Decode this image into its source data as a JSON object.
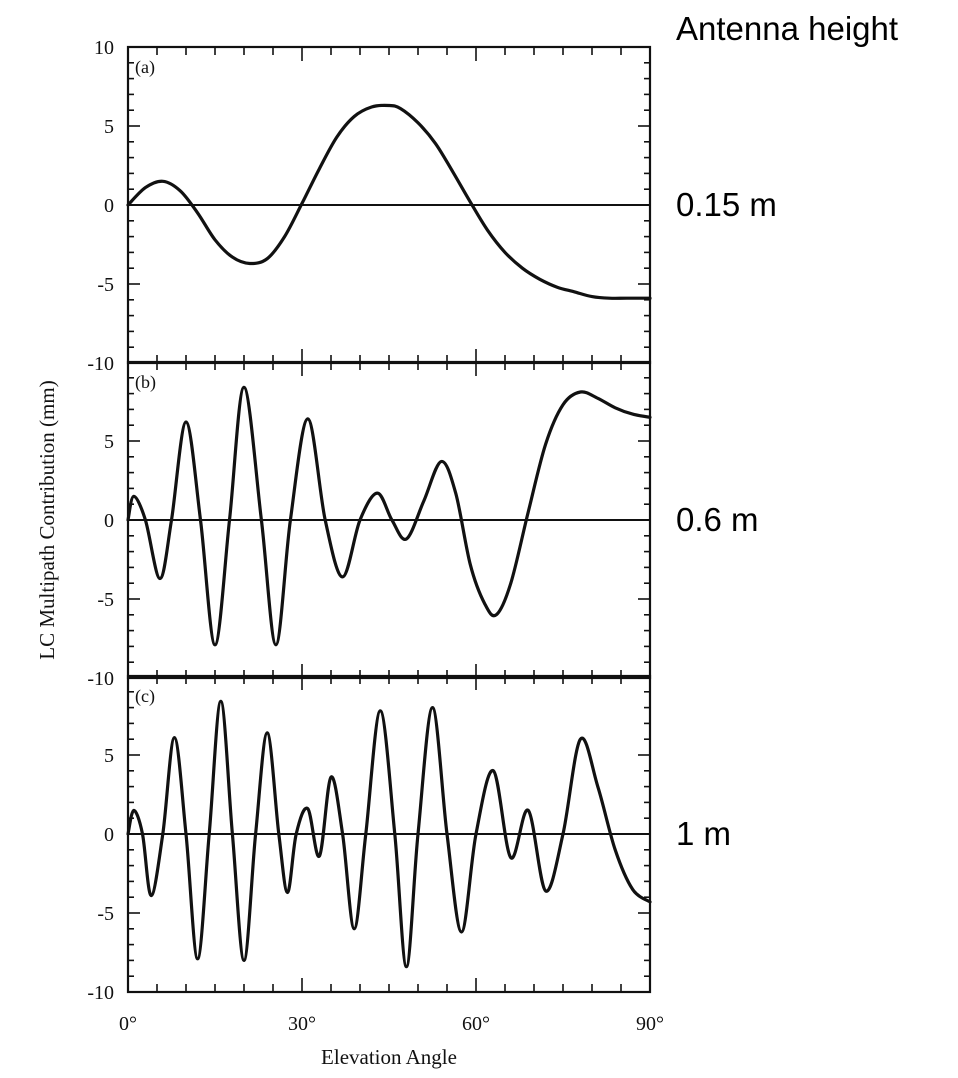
{
  "chart_data": {
    "type": "line",
    "xlabel": "Elevation Angle",
    "ylabel": "LC Multipath Contribution (mm)",
    "xlim": [
      0,
      90
    ],
    "x_ticks": [
      "0°",
      "30°",
      "60°",
      "90°"
    ],
    "ylim": [
      -10,
      10
    ],
    "y_ticks": [
      "10",
      "5",
      "0",
      "-5",
      "-10"
    ],
    "side_header": "Antenna height",
    "panels": [
      {
        "label": "(a)",
        "antenna_height": "0.15 m",
        "x": [
          0,
          3,
          6,
          9,
          12,
          15,
          18,
          21,
          24,
          27,
          30,
          33,
          36,
          39,
          42,
          45,
          47,
          50,
          53,
          56,
          59,
          62,
          65,
          68,
          71,
          74,
          77,
          80,
          83,
          86,
          90
        ],
        "y": [
          0,
          1.1,
          1.5,
          0.9,
          -0.5,
          -2.2,
          -3.3,
          -3.7,
          -3.4,
          -2.0,
          0.1,
          2.3,
          4.3,
          5.6,
          6.2,
          6.3,
          6.1,
          5.2,
          3.9,
          2.1,
          0.2,
          -1.6,
          -3.0,
          -4.0,
          -4.7,
          -5.2,
          -5.5,
          -5.8,
          -5.9,
          -5.9,
          -5.9
        ]
      },
      {
        "label": "(b)",
        "antenna_height": "0.6 m",
        "x": [
          0,
          1,
          3,
          5.5,
          7.5,
          10,
          12.5,
          15,
          17.5,
          20,
          23,
          25.5,
          28,
          31,
          34,
          37,
          40,
          43,
          45.5,
          48,
          51,
          54,
          56.5,
          59,
          61.5,
          63.5,
          66,
          69,
          72,
          75,
          78,
          81,
          84,
          87,
          90
        ],
        "y": [
          0,
          1.5,
          0,
          -3.7,
          0,
          6.2,
          0,
          -7.9,
          0,
          8.4,
          0,
          -7.9,
          0,
          6.4,
          0,
          -3.6,
          0,
          1.7,
          0,
          -1.2,
          1.2,
          3.7,
          1.7,
          -2.8,
          -5.3,
          -6.0,
          -4.0,
          0.5,
          4.8,
          7.3,
          8.1,
          7.7,
          7.1,
          6.7,
          6.5
        ]
      },
      {
        "label": "(c)",
        "antenna_height": "1 m",
        "x": [
          0,
          1,
          2.5,
          4,
          6,
          8,
          10,
          12,
          14,
          16,
          18,
          20,
          22,
          24,
          26,
          27.5,
          29,
          31,
          33,
          35,
          37,
          39,
          41,
          43.5,
          46,
          48,
          50,
          52.5,
          55,
          57.5,
          60,
          63,
          66,
          69,
          72,
          75,
          78,
          81,
          84,
          87,
          90
        ],
        "y": [
          0,
          1.5,
          0,
          -3.9,
          0,
          6.1,
          0,
          -7.9,
          0,
          8.4,
          0,
          -8.0,
          0,
          6.4,
          0,
          -3.7,
          0,
          1.6,
          -1.4,
          3.6,
          0,
          -6.0,
          0,
          7.8,
          0,
          -8.4,
          0,
          8.0,
          0,
          -6.2,
          0,
          4.0,
          -1.5,
          1.5,
          -3.6,
          0,
          6.0,
          3.0,
          -1.0,
          -3.5,
          -4.3
        ]
      }
    ]
  }
}
